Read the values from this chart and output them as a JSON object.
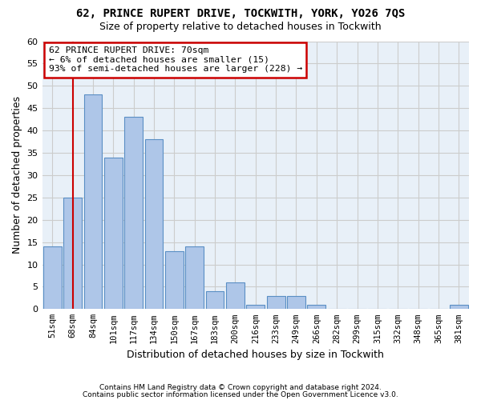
{
  "title": "62, PRINCE RUPERT DRIVE, TOCKWITH, YORK, YO26 7QS",
  "subtitle": "Size of property relative to detached houses in Tockwith",
  "xlabel": "Distribution of detached houses by size in Tockwith",
  "ylabel": "Number of detached properties",
  "bar_labels": [
    "51sqm",
    "68sqm",
    "84sqm",
    "101sqm",
    "117sqm",
    "134sqm",
    "150sqm",
    "167sqm",
    "183sqm",
    "200sqm",
    "216sqm",
    "233sqm",
    "249sqm",
    "266sqm",
    "282sqm",
    "299sqm",
    "315sqm",
    "332sqm",
    "348sqm",
    "365sqm",
    "381sqm"
  ],
  "bar_values": [
    14,
    25,
    48,
    34,
    43,
    38,
    13,
    14,
    4,
    6,
    1,
    3,
    3,
    1,
    0,
    0,
    0,
    0,
    0,
    0,
    1
  ],
  "bar_color": "#aec6e8",
  "bar_edge_color": "#5a8fc4",
  "vline_x": 1.0,
  "vline_color": "#cc0000",
  "annotation_lines": [
    "62 PRINCE RUPERT DRIVE: 70sqm",
    "← 6% of detached houses are smaller (15)",
    "93% of semi-detached houses are larger (228) →"
  ],
  "annotation_box_color": "#cc0000",
  "ylim": [
    0,
    60
  ],
  "yticks": [
    0,
    5,
    10,
    15,
    20,
    25,
    30,
    35,
    40,
    45,
    50,
    55,
    60
  ],
  "grid_color": "#cccccc",
  "bg_color": "#e8f0f8",
  "footer_line1": "Contains HM Land Registry data © Crown copyright and database right 2024.",
  "footer_line2": "Contains public sector information licensed under the Open Government Licence v3.0."
}
